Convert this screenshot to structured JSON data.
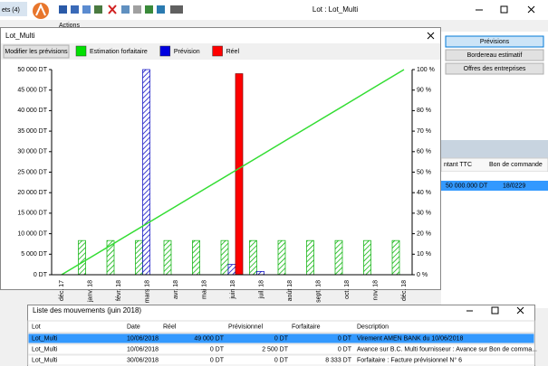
{
  "app": {
    "tab": "ets (4)",
    "title": "Lot : Lot_Multi",
    "actions": "Actions",
    "buttons": [
      "Prévisions",
      "Bordereau estimatif",
      "Offres des entreprises"
    ],
    "table": {
      "headers": [
        "ntant TTC",
        "Bon de commande"
      ],
      "row": [
        "50 000.000 DT",
        "18/0229"
      ]
    }
  },
  "window": {
    "title": "Lot_Multi",
    "button": "Modifier les prévisions"
  },
  "chart_data": {
    "type": "bar",
    "categories": [
      "déc. 17",
      "janv. 18",
      "févr. 18",
      "mars 18",
      "avr. 18",
      "mai 18",
      "juin 18",
      "juil. 18",
      "août 18",
      "sept. 18",
      "oct. 18",
      "nov. 18",
      "déc. 18"
    ],
    "series": [
      {
        "name": "Estimation forfaitaire",
        "color": "#00e000",
        "values": [
          0,
          8333,
          8333,
          8333,
          8333,
          8333,
          8333,
          8333,
          8333,
          8333,
          8333,
          8333,
          8333
        ]
      },
      {
        "name": "Prévision",
        "color": "#0000e0",
        "values": [
          0,
          0,
          0,
          50000,
          0,
          0,
          2500,
          800,
          0,
          0,
          0,
          0,
          0
        ]
      },
      {
        "name": "Réel",
        "color": "#ff0000",
        "values": [
          0,
          0,
          0,
          0,
          0,
          0,
          49000,
          0,
          0,
          0,
          0,
          0,
          0
        ]
      },
      {
        "type": "line",
        "axis": "y2",
        "color": "#33dd33",
        "values": [
          0,
          8.33,
          16.67,
          25,
          33.33,
          41.67,
          50,
          58.33,
          66.67,
          75,
          83.33,
          91.67,
          100
        ]
      }
    ],
    "ylim": [
      0,
      50000
    ],
    "yticks": [
      {
        "value": 0,
        "label": "0 DT"
      },
      {
        "value": 5000,
        "label": "5 000 DT"
      },
      {
        "value": 10000,
        "label": "10 000 DT"
      },
      {
        "value": 15000,
        "label": "15 000 DT"
      },
      {
        "value": 20000,
        "label": "20 000 DT"
      },
      {
        "value": 25000,
        "label": "25 000 DT"
      },
      {
        "value": 30000,
        "label": "30 000 DT"
      },
      {
        "value": 35000,
        "label": "35 000 DT"
      },
      {
        "value": 40000,
        "label": "40 000 DT"
      },
      {
        "value": 45000,
        "label": "45 000 DT"
      },
      {
        "value": 50000,
        "label": "50 000 DT"
      }
    ],
    "y2lim": [
      0,
      100
    ],
    "y2ticks": [
      {
        "value": 0,
        "label": "0 %"
      },
      {
        "value": 10,
        "label": "10 %"
      },
      {
        "value": 20,
        "label": "20 %"
      },
      {
        "value": 30,
        "label": "30 %"
      },
      {
        "value": 40,
        "label": "40 %"
      },
      {
        "value": 50,
        "label": "50 %"
      },
      {
        "value": 60,
        "label": "60 %"
      },
      {
        "value": 70,
        "label": "70 %"
      },
      {
        "value": 80,
        "label": "80 %"
      },
      {
        "value": 90,
        "label": "90 %"
      },
      {
        "value": 100,
        "label": "100 %"
      }
    ]
  },
  "movements": {
    "title": "Liste des mouvements (juin 2018)",
    "headers": [
      "Lot",
      "Date",
      "Réel",
      "Prévisionnel",
      "Forfaitaire",
      "Description"
    ],
    "rows": [
      [
        "Lot_Multi",
        "10/06/2018",
        "49 000 DT",
        "0 DT",
        "0 DT",
        "Virement AMEN BANK du 10/06/2018"
      ],
      [
        "Lot_Multi",
        "10/06/2018",
        "0 DT",
        "2 500 DT",
        "0 DT",
        "Avance sur B.C. Multi fournisseur : Avance sur Bon de comma..."
      ],
      [
        "Lot_Multi",
        "30/06/2018",
        "0 DT",
        "0 DT",
        "8 333 DT",
        "Forfaitaire : Facture prévisionnel N° 6"
      ]
    ]
  }
}
